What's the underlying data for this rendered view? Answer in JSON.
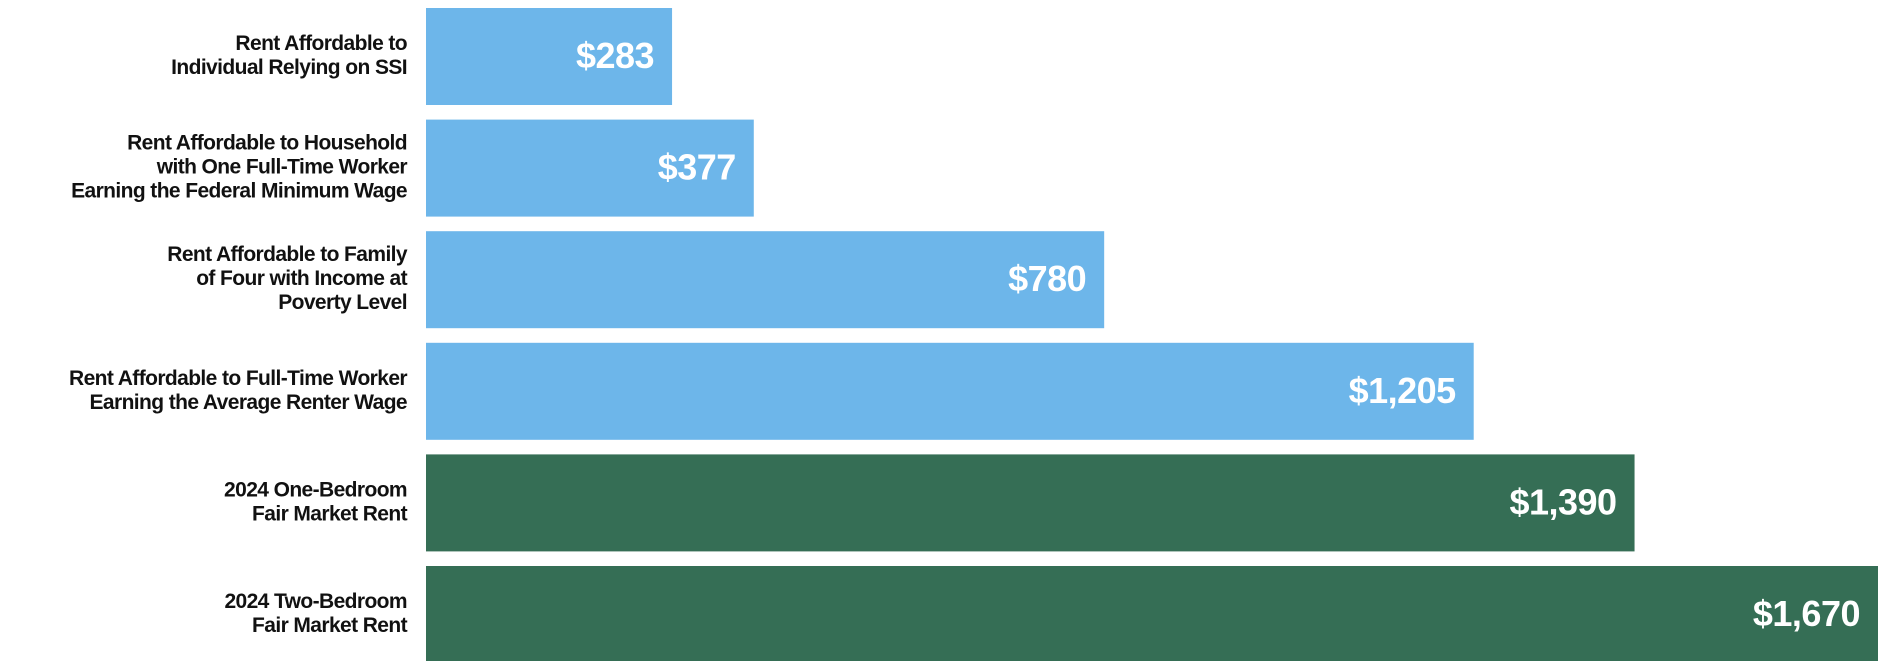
{
  "chart_data": {
    "type": "barh",
    "categories": [
      [
        "Rent Affordable to",
        "Individual Relying on SSI"
      ],
      [
        "Rent Affordable to Household",
        "with One Full-Time Worker",
        "Earning the Federal Minimum Wage"
      ],
      [
        "Rent Affordable to Family",
        "of Four with Income at",
        "Poverty Level"
      ],
      [
        "Rent Affordable to Full-Time Worker",
        "Earning the Average Renter Wage"
      ],
      [
        "2024 One-Bedroom",
        "Fair Market Rent"
      ],
      [
        "2024 Two-Bedroom",
        "Fair Market Rent"
      ]
    ],
    "values": [
      283,
      377,
      780,
      1205,
      1390,
      1670
    ],
    "value_labels": [
      "$283",
      "$377",
      "$780",
      "$1,205",
      "$1,390",
      "$1,670"
    ],
    "colors": [
      "#6db6ea",
      "#6db6ea",
      "#6db6ea",
      "#6db6ea",
      "#356e55",
      "#356e55"
    ]
  }
}
